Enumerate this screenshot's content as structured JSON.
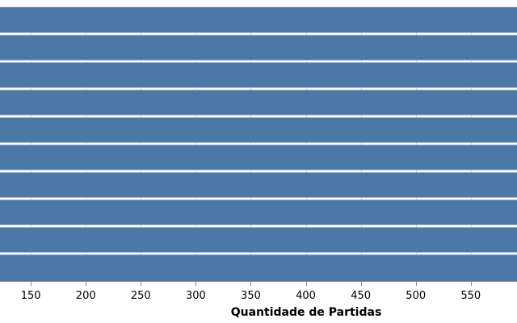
{
  "chart_data": {
    "type": "bar",
    "orientation": "horizontal",
    "xlabel": "Quantidade de Partidas",
    "ylabel": "",
    "xlim": [
      122,
      592
    ],
    "xticks": [
      150,
      200,
      250,
      300,
      350,
      400,
      450,
      500,
      550
    ],
    "bar_color": "#4c78a8",
    "grid": true,
    "series": [
      {
        "values": [
          592,
          592,
          592,
          592,
          592,
          592,
          592,
          592,
          592,
          592
        ]
      }
    ]
  }
}
